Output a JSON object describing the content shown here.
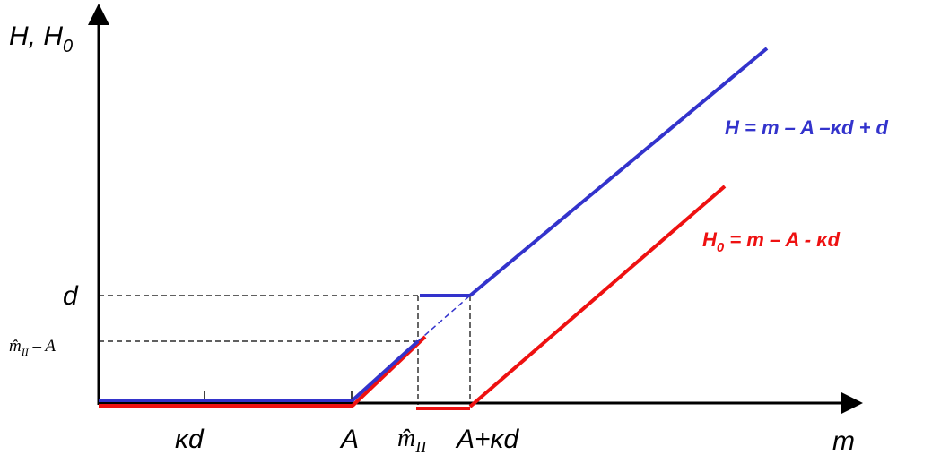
{
  "axes": {
    "y_label": "H, H",
    "y_label_sub": "0",
    "x_label": "m"
  },
  "ticks": {
    "x_kd": "κd",
    "x_A": "A",
    "x_mhat": "m̂",
    "x_mhat_sub": "II",
    "x_Akd": "A+κd",
    "y_d": "d",
    "y_mhat": "m̂",
    "y_mhat_sub": "II",
    "y_mhat_rest": " – A"
  },
  "legend": {
    "H_text": "H = m – A –κd + d",
    "H0_main": "H",
    "H0_sub": "0",
    "H0_rest": " = m – A - κd"
  },
  "colors": {
    "H": "#3333cc",
    "H0": "#ee1111",
    "axis": "#000000"
  }
}
